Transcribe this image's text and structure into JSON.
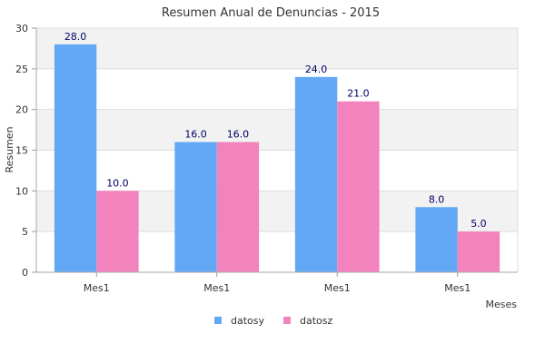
{
  "chart_data": {
    "type": "bar",
    "title": "Resumen Anual de Denuncias - 2015",
    "xlabel": "Meses",
    "ylabel": "Resumen",
    "categories": [
      "Mes1",
      "Mes1",
      "Mes1",
      "Mes1"
    ],
    "series": [
      {
        "name": "datosy",
        "values": [
          28.0,
          16.0,
          24.0,
          8.0
        ],
        "color": "#62a8f5"
      },
      {
        "name": "datosz",
        "values": [
          10.0,
          16.0,
          21.0,
          5.0
        ],
        "color": "#f383bd"
      }
    ],
    "ylim": [
      0,
      30
    ],
    "yticks": [
      0,
      5,
      10,
      15,
      20,
      25,
      30
    ],
    "grid": true,
    "legend_position": "bottom-center",
    "value_labels": true
  }
}
